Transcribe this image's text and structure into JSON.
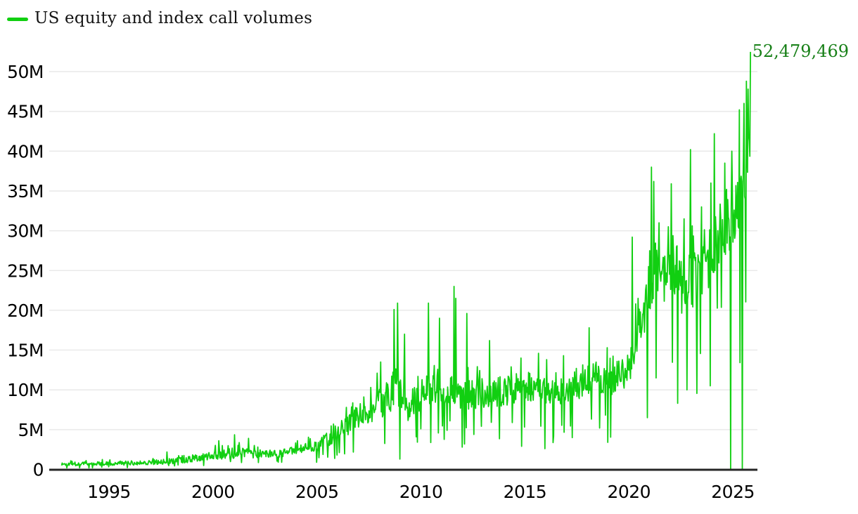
{
  "legend": {
    "label": "US equity and index call volumes"
  },
  "colors": {
    "series_green": "#11CF11",
    "annotation_green": "#188018",
    "axis": "#262626",
    "grid": "#e9e9e9",
    "text": "#000000"
  },
  "chart_data": {
    "type": "line",
    "title": "US equity and index call volumes",
    "series_name": "US equity and index call volumes",
    "legend_position": "top-left",
    "grid": "horizontal-only",
    "x_range": [
      1992.72,
      2025.85
    ],
    "ylim_M": [
      0,
      52.5
    ],
    "xticks": [
      "1995",
      "2000",
      "2005",
      "2010",
      "2015",
      "2020",
      "2025"
    ],
    "xtick_years": [
      1995,
      2000,
      2005,
      2010,
      2015,
      2020,
      2025
    ],
    "ytick_labels": [
      "0",
      "5M",
      "10M",
      "15M",
      "20M",
      "25M",
      "30M",
      "35M",
      "40M",
      "45M",
      "50M"
    ],
    "ytick_values_M": [
      0,
      5,
      10,
      15,
      20,
      25,
      30,
      35,
      40,
      45,
      50
    ],
    "envelope_M": [
      [
        1992.72,
        0.35,
        0.95
      ],
      [
        1994.0,
        0.4,
        1.05
      ],
      [
        1996.0,
        0.45,
        1.15
      ],
      [
        1997.5,
        0.55,
        1.35
      ],
      [
        1999.0,
        0.75,
        1.8
      ],
      [
        2000.0,
        1.1,
        2.6
      ],
      [
        2001.2,
        1.2,
        3.0
      ],
      [
        2002.0,
        1.3,
        2.7
      ],
      [
        2003.0,
        1.3,
        2.5
      ],
      [
        2004.0,
        1.7,
        3.1
      ],
      [
        2005.0,
        2.1,
        3.9
      ],
      [
        2006.0,
        3.2,
        6.0
      ],
      [
        2007.0,
        4.8,
        8.5
      ],
      [
        2008.0,
        5.8,
        10.5
      ],
      [
        2008.8,
        6.5,
        13.5
      ],
      [
        2009.3,
        5.5,
        10.0
      ],
      [
        2010.0,
        7.0,
        12.0
      ],
      [
        2011.0,
        7.8,
        13.5
      ],
      [
        2012.0,
        7.0,
        12.0
      ],
      [
        2013.0,
        7.3,
        12.0
      ],
      [
        2014.0,
        7.5,
        12.3
      ],
      [
        2015.0,
        7.8,
        12.8
      ],
      [
        2016.0,
        7.5,
        12.4
      ],
      [
        2017.0,
        7.4,
        11.8
      ],
      [
        2018.0,
        9.0,
        14.8
      ],
      [
        2019.0,
        8.6,
        13.4
      ],
      [
        2020.05,
        10.0,
        15.5
      ],
      [
        2020.3,
        13.0,
        20.0
      ],
      [
        2020.7,
        15.0,
        22.0
      ],
      [
        2021.0,
        19.0,
        29.0
      ],
      [
        2021.5,
        20.0,
        31.0
      ],
      [
        2022.0,
        18.5,
        28.0
      ],
      [
        2022.7,
        18.0,
        27.0
      ],
      [
        2023.0,
        19.0,
        28.5
      ],
      [
        2023.6,
        20.0,
        29.5
      ],
      [
        2024.0,
        23.0,
        33.0
      ],
      [
        2024.5,
        25.0,
        35.0
      ],
      [
        2025.0,
        27.0,
        38.5
      ],
      [
        2025.4,
        30.0,
        42.0
      ],
      [
        2025.85,
        36.0,
        49.0
      ]
    ],
    "spikes_M": [
      [
        1997.8,
        2.2
      ],
      [
        2000.29,
        3.6
      ],
      [
        2001.05,
        4.35
      ],
      [
        2001.7,
        3.9
      ],
      [
        2004.05,
        3.6
      ],
      [
        2006.4,
        7.8
      ],
      [
        2007.6,
        10.3
      ],
      [
        2007.9,
        12.1
      ],
      [
        2008.07,
        13.5
      ],
      [
        2008.72,
        20.1
      ],
      [
        2008.87,
        20.9
      ],
      [
        2009.2,
        17.0
      ],
      [
        2010.35,
        20.9
      ],
      [
        2010.9,
        19.0
      ],
      [
        2011.6,
        23.0
      ],
      [
        2011.68,
        21.5
      ],
      [
        2012.2,
        19.6
      ],
      [
        2013.3,
        16.2
      ],
      [
        2014.8,
        14.0
      ],
      [
        2015.65,
        14.6
      ],
      [
        2016.05,
        13.8
      ],
      [
        2016.85,
        14.3
      ],
      [
        2018.1,
        17.8
      ],
      [
        2018.95,
        15.3
      ],
      [
        2020.17,
        29.2
      ],
      [
        2020.45,
        21.5
      ],
      [
        2020.65,
        19.5
      ],
      [
        2020.95,
        25.5
      ],
      [
        2021.08,
        38.0
      ],
      [
        2021.2,
        36.2
      ],
      [
        2021.45,
        31.0
      ],
      [
        2021.9,
        30.5
      ],
      [
        2022.05,
        35.9
      ],
      [
        2022.65,
        31.5
      ],
      [
        2022.95,
        40.2
      ],
      [
        2023.5,
        33.0
      ],
      [
        2023.95,
        36.0
      ],
      [
        2024.1,
        42.2
      ],
      [
        2024.6,
        38.5
      ],
      [
        2024.95,
        40.0
      ],
      [
        2025.3,
        45.2
      ],
      [
        2025.55,
        46.0
      ],
      [
        2025.65,
        48.8
      ],
      [
        2025.72,
        47.8
      ]
    ],
    "dips_M": [
      [
        2004.97,
        0.9
      ],
      [
        2008.98,
        1.3
      ],
      [
        2011.98,
        2.8
      ],
      [
        2014.85,
        2.9
      ],
      [
        2015.95,
        2.6
      ],
      [
        2018.98,
        3.4
      ],
      [
        2020.9,
        6.5
      ],
      [
        2021.3,
        11.5
      ],
      [
        2022.8,
        10.0
      ],
      [
        2023.9,
        10.5
      ],
      [
        2024.9,
        0.0
      ],
      [
        2025.45,
        0.0
      ]
    ],
    "last_point": {
      "x": 2025.85,
      "value": 52479469,
      "label": "52,479,469"
    }
  }
}
